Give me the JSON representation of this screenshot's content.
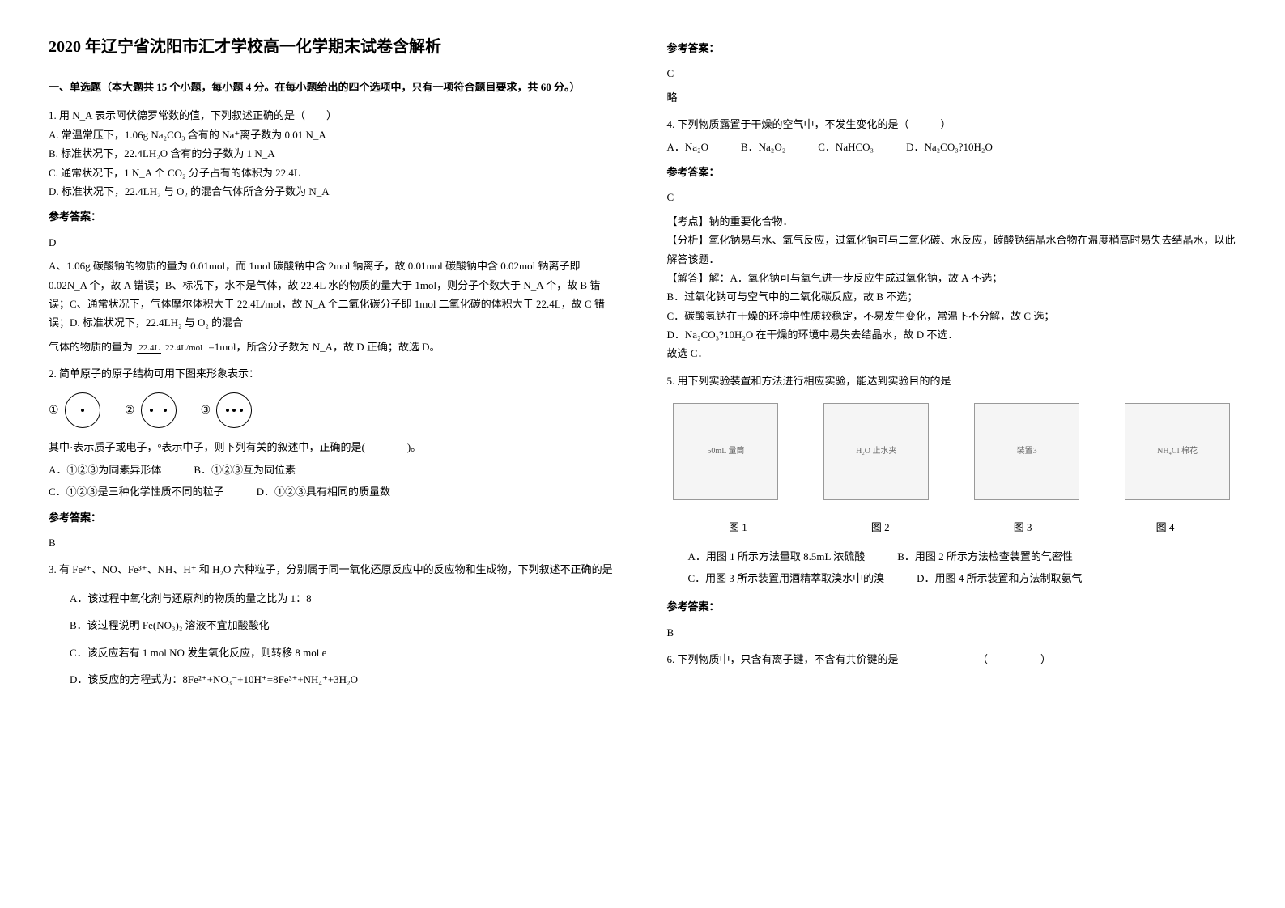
{
  "title": "2020 年辽宁省沈阳市汇才学校高一化学期末试卷含解析",
  "section1": "一、单选题（本大题共 15 个小题，每小题 4 分。在每小题给出的四个选项中，只有一项符合题目要求，共 60 分。）",
  "q1": {
    "stem": "1. 用 N_A 表示阿伏德罗常数的值，下列叙述正确的是（　　）",
    "optA": "A. 常温常压下，1.06g Na₂CO₃ 含有的 Na⁺离子数为 0.01 N_A",
    "optB": "B. 标准状况下，22.4LH₂O 含有的分子数为 1 N_A",
    "optC": "C. 通常状况下，1 N_A 个 CO₂ 分子占有的体积为 22.4L",
    "optD": "D. 标准状况下，22.4LH₂ 与 O₂ 的混合气体所含分子数为 N_A",
    "ansLabel": "参考答案：",
    "ans": "D",
    "exp": "A、1.06g 碳酸钠的物质的量为 0.01mol，而 1mol 碳酸钠中含 2mol 钠离子，故 0.01mol 碳酸钠中含 0.02mol 钠离子即 0.02N_A 个，故 A 错误；B、标况下，水不是气体，故 22.4L 水的物质的量大于 1mol，则分子个数大于 N_A 个，故 B 错误；C、通常状况下，气体摩尔体积大于 22.4L/mol，故 N_A 个二氧化碳分子即 1mol 二氧化碳的体积大于 22.4L，故 C 错误；D. 标准状况下，22.4LH₂ 与 O₂ 的混合",
    "exp2": "=1mol，所含分子数为 N_A，故 D 正确；故选 D。",
    "fracNum": "22.4L",
    "fracDen": "22.4L/mol",
    "fracPrefix": "气体的物质的量为"
  },
  "q2": {
    "stem": "2. 简单原子的原子结构可用下图来形象表示：",
    "c1": "①",
    "c2": "②",
    "c3": "③",
    "line2": "其中·表示质子或电子，°表示中子，则下列有关的叙述中，正确的是(　　　　)。",
    "optA": "A．①②③为同素异形体",
    "optB": "B．①②③互为同位素",
    "optC": "C．①②③是三种化学性质不同的粒子",
    "optD": "D．①②③具有相同的质量数",
    "ansLabel": "参考答案：",
    "ans": "B"
  },
  "q3": {
    "stem": "3. 有 Fe²⁺、NO、Fe³⁺、NH、H⁺ 和 H₂O 六种粒子，分别属于同一氧化还原反应中的反应物和生成物，下列叙述不正确的是",
    "optA": "A．该过程中氧化剂与还原剂的物质的量之比为 1：8",
    "optB": "B．该过程说明 Fe(NO₃)₂ 溶液不宜加酸酸化",
    "optC": "C．该反应若有 1 mol NO 发生氧化反应，则转移 8 mol e⁻",
    "optD": "D．该反应的方程式为：8Fe²⁺+NO₃⁻+10H⁺=8Fe³⁺+NH₄⁺+3H₂O",
    "ansLabel": "参考答案：",
    "ans": "C",
    "brief": "略"
  },
  "q4": {
    "stem": "4. 下列物质露置于干燥的空气中，不发生变化的是（　　　）",
    "optA": "A．Na₂O",
    "optB": "B．Na₂O₂",
    "optC": "C．NaHCO₃",
    "optD": "D．Na₂CO₃?10H₂O",
    "ansLabel": "参考答案：",
    "ans": "C",
    "kpLabel": "【考点】",
    "kp": "钠的重要化合物．",
    "fxLabel": "【分析】",
    "fx": "氧化钠易与水、氧气反应，过氧化钠可与二氧化碳、水反应，碳酸钠结晶水合物在温度稍高时易失去结晶水，以此解答该题．",
    "jdLabel": "【解答】",
    "jdA": "解：A．氧化钠可与氧气进一步反应生成过氧化钠，故 A 不选；",
    "jdB": "B．过氧化钠可与空气中的二氧化碳反应，故 B 不选；",
    "jdC": "C．碳酸氢钠在干燥的环境中性质较稳定，不易发生变化，常温下不分解，故 C 选；",
    "jdD": "D．Na₂CO₃?10H₂O 在干燥的环境中易失去结晶水，故 D 不选．",
    "jdEnd": "故选 C．"
  },
  "q5": {
    "stem": "5. 用下列实验装置和方法进行相应实验，能达到实验目的的是",
    "img1cap": "图 1",
    "img2cap": "图 2",
    "img3cap": "图 3",
    "img4cap": "图 4",
    "img1label": "50mL 量筒",
    "img2label": "H₂O 止水夹",
    "img3label": "装置3",
    "img4label": "NH₄Cl 棉花",
    "optA": "A．用图 1 所示方法量取 8.5mL 浓硫酸",
    "optB": "B．用图 2 所示方法检查装置的气密性",
    "optC": "C．用图 3 所示装置用酒精萃取溴水中的溴",
    "optD": "D．用图 4 所示装置和方法制取氨气",
    "ansLabel": "参考答案：",
    "ans": "B"
  },
  "q6": {
    "stem": "6. 下列物质中，只含有离子键，不含有共价键的是　　　　　　　　（　　　　　）"
  }
}
